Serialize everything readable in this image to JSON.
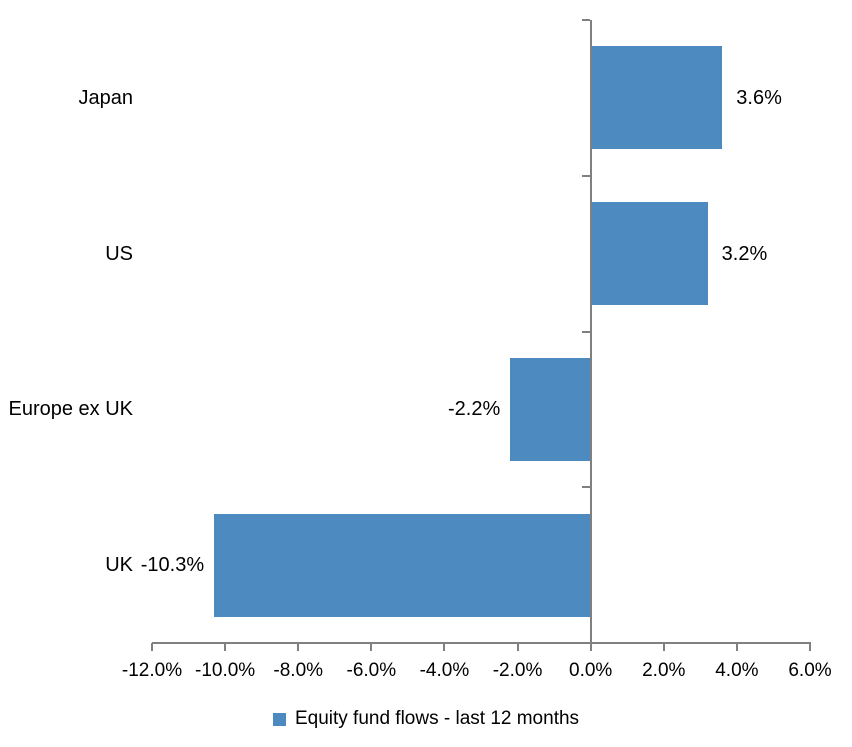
{
  "chart_data": {
    "type": "bar",
    "orientation": "horizontal",
    "title": "",
    "categories": [
      "Japan",
      "US",
      "Europe ex UK",
      "UK"
    ],
    "values": [
      3.6,
      3.2,
      -2.2,
      -10.3
    ],
    "value_labels": [
      "3.6%",
      "3.2%",
      "-2.2%",
      "-10.3%"
    ],
    "xlim": [
      -12,
      6
    ],
    "x_tick_step": 2,
    "x_tick_labels": [
      "-12.0%",
      "-10.0%",
      "-8.0%",
      "-6.0%",
      "-4.0%",
      "-2.0%",
      "0.0%",
      "2.0%",
      "4.0%",
      "6.0%"
    ],
    "legend": {
      "label": "Equity fund flows - last 12 months",
      "position": "bottom"
    },
    "grid": false,
    "colors": {
      "bar": "#4D8AC0",
      "axis": "#808080",
      "text": "#000000",
      "background": "#ffffff"
    }
  }
}
